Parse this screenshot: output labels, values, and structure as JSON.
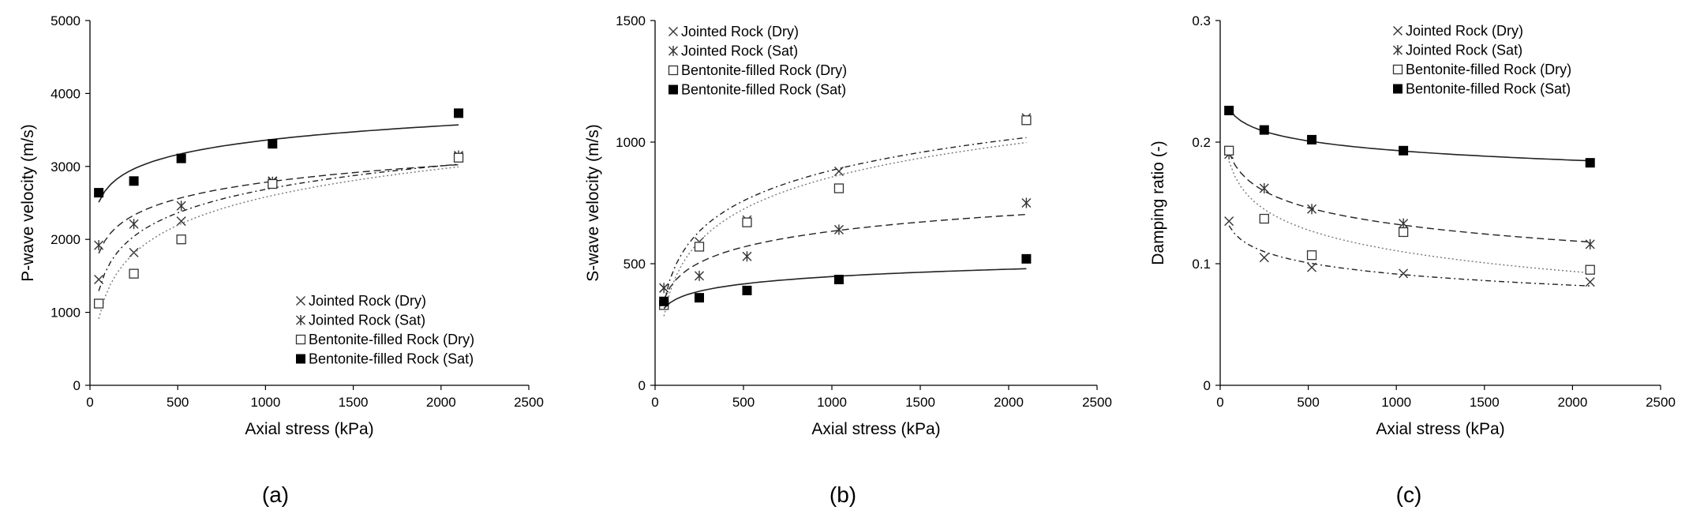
{
  "chart_data": [
    {
      "type": "scatter",
      "panel_label": "(a)",
      "xlabel": "Axial stress (kPa)",
      "ylabel": "P-wave velocity (m/s)",
      "xlim": [
        0,
        2500
      ],
      "ylim": [
        0,
        5000
      ],
      "xticks": [
        "0",
        "500",
        "1000",
        "1500",
        "2000",
        "2500"
      ],
      "yticks": [
        "0",
        "1000",
        "2000",
        "3000",
        "4000",
        "5000"
      ],
      "legend_position": "bottom-right",
      "x": [
        50,
        250,
        520,
        1040,
        2100
      ],
      "series": [
        {
          "name": "Jointed Rock (Dry)",
          "marker": "x",
          "values": [
            1450,
            1820,
            2250,
            2800,
            3130
          ],
          "fit": "dash-dot"
        },
        {
          "name": "Jointed Rock (Sat)",
          "marker": "asterisk",
          "values": [
            1920,
            2210,
            2460,
            2790,
            3150
          ],
          "fit": "dashed"
        },
        {
          "name": "Bentonite-filled Rock (Dry)",
          "marker": "open-square",
          "values": [
            1120,
            1530,
            2000,
            2760,
            3120
          ],
          "fit": "dotted"
        },
        {
          "name": "Bentonite-filled Rock (Sat)",
          "marker": "filled-square",
          "values": [
            2640,
            2800,
            3110,
            3310,
            3730
          ],
          "fit": "solid"
        }
      ]
    },
    {
      "type": "scatter",
      "panel_label": "(b)",
      "xlabel": "Axial stress (kPa)",
      "ylabel": "S-wave velocity (m/s)",
      "xlim": [
        0,
        2500
      ],
      "ylim": [
        0,
        1500
      ],
      "xticks": [
        "0",
        "500",
        "1000",
        "1500",
        "2000",
        "2500"
      ],
      "yticks": [
        "0",
        "500",
        "1000",
        "1500"
      ],
      "legend_position": "top-left",
      "x": [
        50,
        250,
        520,
        1040,
        2100
      ],
      "series": [
        {
          "name": "Jointed Rock (Dry)",
          "marker": "x",
          "values": [
            400,
            590,
            680,
            880,
            1100
          ],
          "fit": "dash-dot"
        },
        {
          "name": "Jointed Rock (Sat)",
          "marker": "asterisk",
          "values": [
            400,
            450,
            530,
            640,
            750
          ],
          "fit": "dashed"
        },
        {
          "name": "Bentonite-filled Rock (Dry)",
          "marker": "open-square",
          "values": [
            330,
            570,
            670,
            810,
            1090
          ],
          "fit": "dotted"
        },
        {
          "name": "Bentonite-filled Rock (Sat)",
          "marker": "filled-square",
          "values": [
            345,
            360,
            390,
            435,
            520
          ],
          "fit": "solid"
        }
      ]
    },
    {
      "type": "scatter",
      "panel_label": "(c)",
      "xlabel": "Axial stress (kPa)",
      "ylabel": "Damping ratio (-)",
      "xlim": [
        0,
        2500
      ],
      "ylim": [
        0,
        0.3
      ],
      "xticks": [
        "0",
        "500",
        "1000",
        "1500",
        "2000",
        "2500"
      ],
      "yticks": [
        "0",
        "0.1",
        "0.2",
        "0.3"
      ],
      "legend_position": "top-right",
      "x": [
        50,
        250,
        520,
        1040,
        2100
      ],
      "series": [
        {
          "name": "Jointed Rock (Dry)",
          "marker": "x",
          "values": [
            0.135,
            0.105,
            0.097,
            0.092,
            0.085
          ],
          "fit": "dash-dot"
        },
        {
          "name": "Jointed Rock (Sat)",
          "marker": "asterisk",
          "values": [
            0.19,
            0.162,
            0.145,
            0.133,
            0.116
          ],
          "fit": "dashed"
        },
        {
          "name": "Bentonite-filled Rock (Dry)",
          "marker": "open-square",
          "values": [
            0.193,
            0.137,
            0.107,
            0.126,
            0.095
          ],
          "fit": "dotted"
        },
        {
          "name": "Bentonite-filled Rock (Sat)",
          "marker": "filled-square",
          "values": [
            0.226,
            0.21,
            0.202,
            0.193,
            0.183
          ],
          "fit": "solid"
        }
      ]
    }
  ]
}
